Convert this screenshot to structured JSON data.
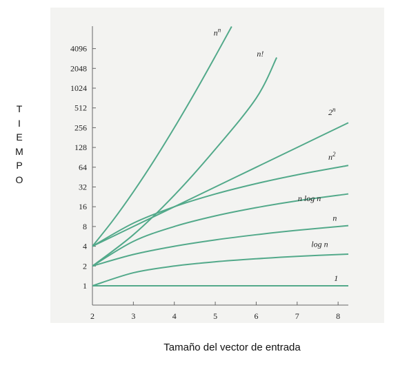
{
  "chart_data": {
    "type": "line",
    "xlabel": "Tamaño del vector de entrada",
    "ylabel_letters": [
      "T",
      "I",
      "E",
      "M",
      "P",
      "O"
    ],
    "x_ticks": [
      2,
      3,
      4,
      5,
      6,
      7,
      8
    ],
    "y_ticks": [
      1,
      2,
      4,
      8,
      16,
      32,
      64,
      128,
      256,
      512,
      1024,
      2048,
      4096
    ],
    "y_scale": "log2",
    "xlim": [
      2,
      8.25
    ],
    "ylim": [
      0.75,
      9000
    ],
    "grid": false,
    "series": [
      {
        "name": "nⁿ",
        "base": "n",
        "sup": "n",
        "x": [
          2,
          2.5,
          3,
          3.5,
          4,
          4.5,
          5,
          5.4
        ],
        "y": [
          4,
          9.9,
          27,
          80,
          256,
          870,
          3125,
          8900
        ]
      },
      {
        "name": "n!",
        "base": "n!",
        "sup": "",
        "x": [
          2,
          3,
          4,
          5,
          6,
          6.5
        ],
        "y": [
          2,
          6,
          24,
          120,
          720,
          3000
        ]
      },
      {
        "name": "2ⁿ",
        "base": "2",
        "sup": "n",
        "x": [
          2,
          3,
          4,
          5,
          6,
          7,
          8.25
        ],
        "y": [
          4,
          8,
          16,
          32,
          64,
          128,
          304
        ]
      },
      {
        "name": "n²",
        "base": "n",
        "sup": "2",
        "x": [
          2,
          3,
          4,
          5,
          6,
          7,
          8.25
        ],
        "y": [
          4,
          9,
          16,
          25,
          36,
          49,
          68
        ]
      },
      {
        "name": "n log n",
        "base": "n log n",
        "sup": "",
        "x": [
          2,
          3,
          4,
          5,
          6,
          7,
          8.25
        ],
        "y": [
          2,
          4.75,
          8,
          11.6,
          15.5,
          19.7,
          25.1
        ]
      },
      {
        "name": "n",
        "base": "n",
        "sup": "",
        "x": [
          2,
          3,
          4,
          5,
          6,
          7,
          8.25
        ],
        "y": [
          2,
          3,
          4,
          5,
          6,
          7,
          8.25
        ]
      },
      {
        "name": "log n",
        "base": "log n",
        "sup": "",
        "x": [
          2,
          3,
          4,
          5,
          6,
          7,
          8.25
        ],
        "y": [
          1,
          1.58,
          2,
          2.32,
          2.58,
          2.81,
          3.04
        ]
      },
      {
        "name": "1",
        "base": "1",
        "sup": "",
        "x": [
          2,
          8.25
        ],
        "y": [
          1,
          1
        ]
      }
    ],
    "labels": [
      {
        "series": 0,
        "x": 5.05,
        "y": 6500
      },
      {
        "series": 1,
        "x": 6.1,
        "y": 3100
      },
      {
        "series": 2,
        "x": 7.85,
        "y": 400
      },
      {
        "series": 3,
        "x": 7.85,
        "y": 83
      },
      {
        "series": 4,
        "x": 7.3,
        "y": 19.5
      },
      {
        "series": 5,
        "x": 7.92,
        "y": 9.8
      },
      {
        "series": 6,
        "x": 7.55,
        "y": 3.9
      },
      {
        "series": 7,
        "x": 7.95,
        "y": 1.18
      }
    ],
    "line_color": "#52a98a"
  }
}
